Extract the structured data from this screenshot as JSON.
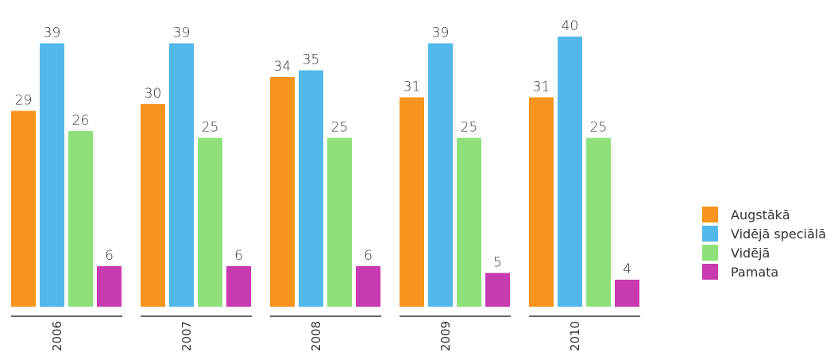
{
  "chart_data": {
    "type": "bar",
    "categories": [
      "2006",
      "2007",
      "2008",
      "2009",
      "2010"
    ],
    "series": [
      {
        "name": "Augstākā",
        "values": [
          29,
          30,
          34,
          31,
          31
        ],
        "color": "#f7941d"
      },
      {
        "name": "Vidējā speciālā",
        "values": [
          39,
          39,
          35,
          39,
          40
        ],
        "color": "#52b8e9"
      },
      {
        "name": "Vidējā",
        "values": [
          26,
          25,
          25,
          25,
          25
        ],
        "color": "#8ee17a"
      },
      {
        "name": "Pamata",
        "values": [
          6,
          6,
          6,
          5,
          4
        ],
        "color": "#c83bb0"
      }
    ],
    "ylim": [
      0,
      40
    ],
    "legend": "right",
    "grid": false
  }
}
